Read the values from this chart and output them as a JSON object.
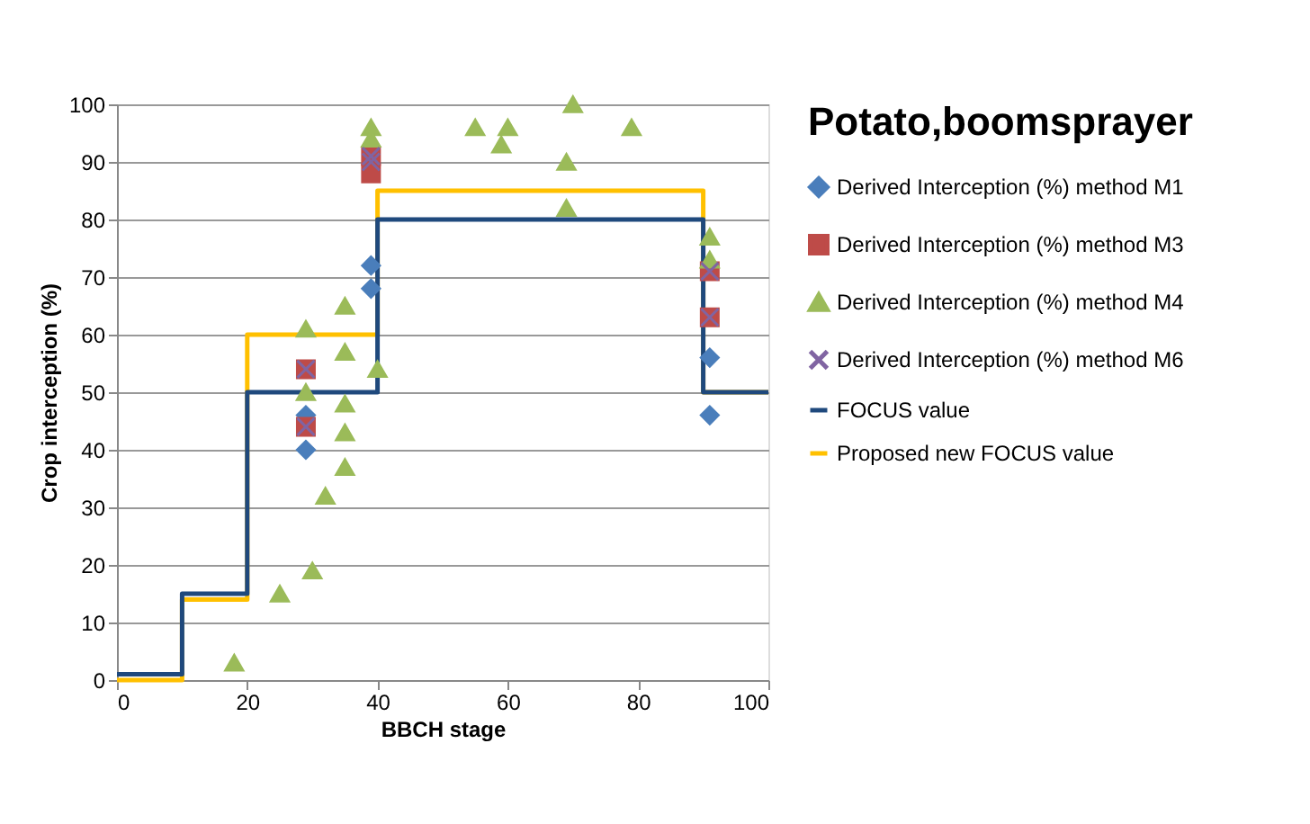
{
  "chart_data": {
    "type": "scatter",
    "title": "Potato,boomsprayer",
    "xlabel": "BBCH stage",
    "ylabel": "Crop interception (%)",
    "xlim": [
      0,
      100
    ],
    "xticks": [
      0,
      20,
      40,
      60,
      80,
      100
    ],
    "ylim": [
      0,
      100
    ],
    "yticks": [
      0,
      10,
      20,
      30,
      40,
      50,
      60,
      70,
      80,
      90,
      100
    ],
    "grid": "y",
    "legend": "right",
    "series": [
      {
        "name": "Derived Interception (%) method M1",
        "color": "#4a7ebb",
        "marker": "diamond",
        "x": [
          29,
          29,
          39,
          39,
          91,
          91
        ],
        "values": [
          40,
          46,
          68,
          72,
          56,
          46
        ]
      },
      {
        "name": "Derived Interception (%) method M3",
        "color": "#be4b48",
        "marker": "square",
        "x": [
          29,
          29,
          39,
          39,
          91,
          91
        ],
        "values": [
          54,
          44,
          88,
          91,
          71,
          63
        ]
      },
      {
        "name": "Derived Interception (%) method M4",
        "color": "#9bbb59",
        "marker": "triangle",
        "x": [
          18,
          25,
          30,
          32,
          29,
          29,
          35,
          35,
          35,
          35,
          35,
          40,
          39,
          39,
          55,
          60,
          59,
          70,
          69,
          69,
          79,
          91,
          91
        ],
        "values": [
          3,
          15,
          19,
          32,
          61,
          50,
          65,
          57,
          48,
          43,
          37,
          54,
          96,
          94,
          96,
          96,
          93,
          100,
          90,
          82,
          96,
          77,
          73
        ]
      },
      {
        "name": "Derived Interception (%) method M6",
        "color": "#8064a2",
        "marker": "cross",
        "x": [
          29,
          29,
          39,
          39,
          91,
          91
        ],
        "values": [
          54,
          44,
          90,
          91,
          71,
          63
        ]
      },
      {
        "name": "FOCUS value",
        "type": "step",
        "color": "#1f497d",
        "marker": "none",
        "x": [
          0,
          10,
          20,
          40,
          90,
          100
        ],
        "values": [
          1,
          15,
          50,
          80,
          50,
          50
        ]
      },
      {
        "name": "Proposed new FOCUS value",
        "type": "step",
        "color": "#ffc000",
        "marker": "none",
        "x": [
          0,
          10,
          20,
          40,
          90,
          100
        ],
        "values": [
          0,
          14,
          60,
          85,
          50,
          50
        ]
      }
    ]
  }
}
